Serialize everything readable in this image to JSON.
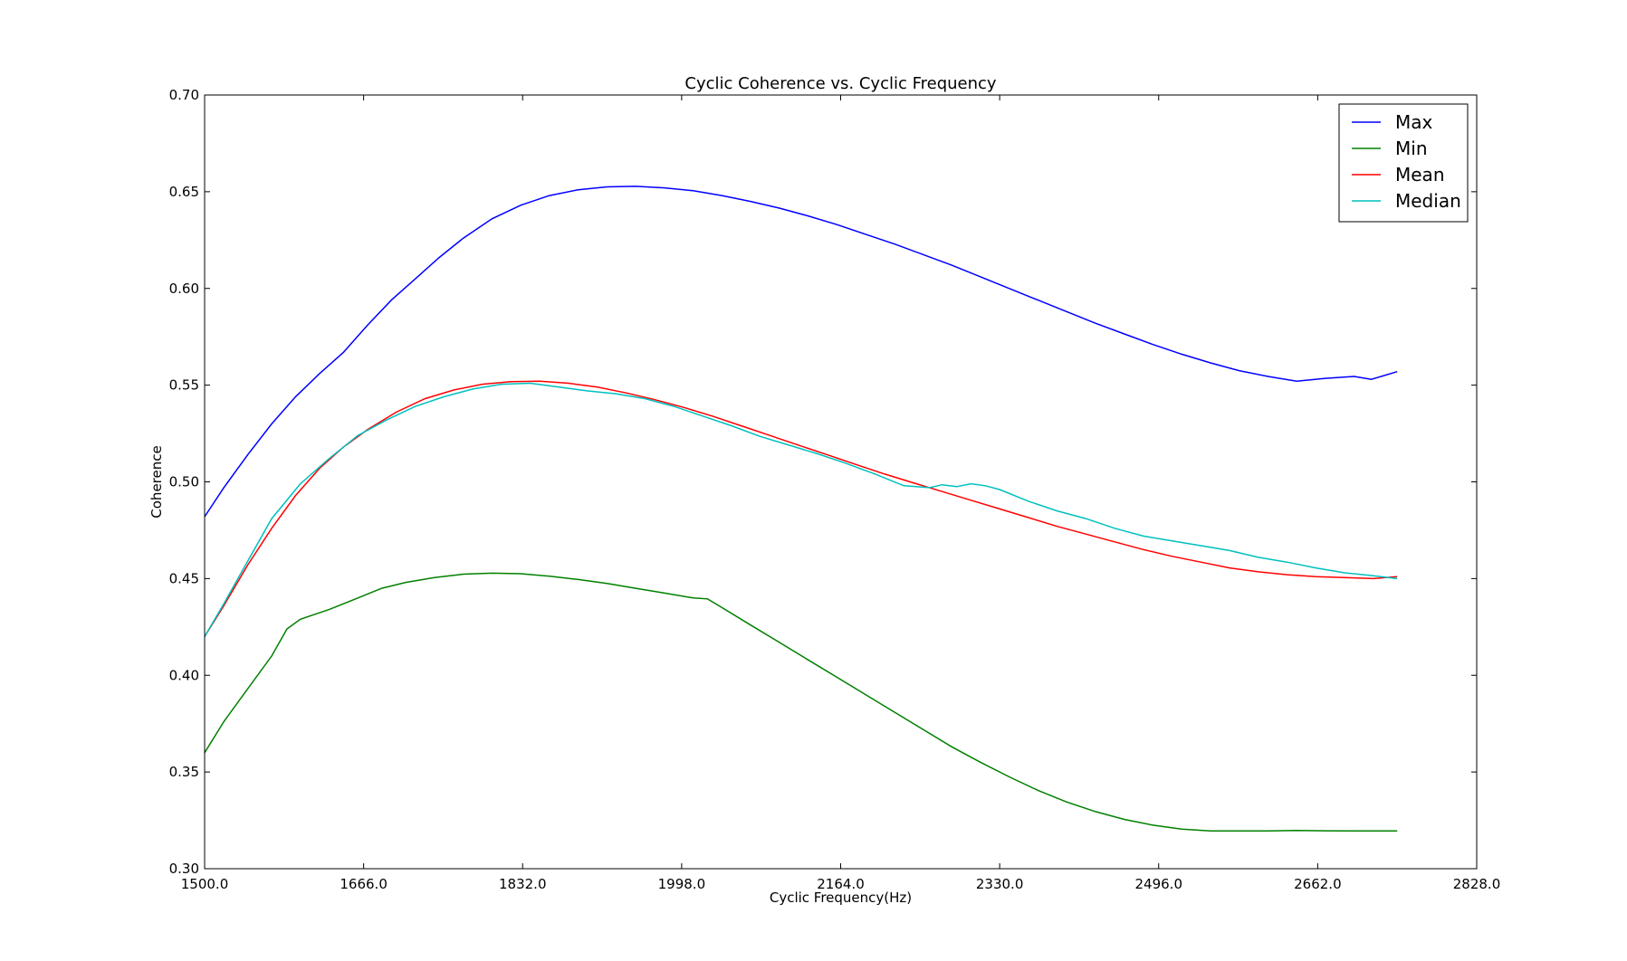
{
  "chart_data": {
    "type": "line",
    "title": "Cyclic Coherence vs. Cyclic Frequency",
    "xlabel": "Cyclic Frequency(Hz)",
    "ylabel": "Coherence",
    "xlim": [
      1500,
      2828
    ],
    "ylim": [
      0.3,
      0.7
    ],
    "xticks": [
      "1500.0",
      "1666.0",
      "1832.0",
      "1998.0",
      "2164.0",
      "2330.0",
      "2496.0",
      "2662.0",
      "2828.0"
    ],
    "yticks": [
      "0.30",
      "0.35",
      "0.40",
      "0.45",
      "0.50",
      "0.55",
      "0.60",
      "0.65",
      "0.70"
    ],
    "grid": false,
    "legend_position": "top-right",
    "series": [
      {
        "name": "Max",
        "color": "#0000ff",
        "x": [
          1500,
          1520,
          1545,
          1570,
          1595,
          1620,
          1645,
          1670,
          1695,
          1720,
          1745,
          1770,
          1800,
          1830,
          1860,
          1890,
          1920,
          1950,
          1980,
          2010,
          2040,
          2070,
          2100,
          2130,
          2160,
          2190,
          2220,
          2250,
          2280,
          2310,
          2340,
          2370,
          2400,
          2430,
          2460,
          2490,
          2520,
          2550,
          2580,
          2610,
          2640,
          2670,
          2700,
          2718,
          2745
        ],
        "y": [
          0.482,
          0.497,
          0.514,
          0.53,
          0.544,
          0.556,
          0.567,
          0.581,
          0.594,
          0.605,
          0.616,
          0.626,
          0.636,
          0.643,
          0.648,
          0.651,
          0.6525,
          0.6528,
          0.652,
          0.6505,
          0.648,
          0.645,
          0.6415,
          0.6375,
          0.633,
          0.628,
          0.623,
          0.6175,
          0.612,
          0.606,
          0.6,
          0.594,
          0.588,
          0.582,
          0.5765,
          0.571,
          0.566,
          0.5615,
          0.5575,
          0.5545,
          0.552,
          0.5535,
          0.5545,
          0.553,
          0.557
        ]
      },
      {
        "name": "Min",
        "color": "#008000",
        "x": [
          1500,
          1520,
          1545,
          1570,
          1586,
          1600,
          1630,
          1660,
          1685,
          1710,
          1740,
          1770,
          1800,
          1830,
          1860,
          1890,
          1920,
          1950,
          1980,
          2010,
          2025,
          2040,
          2070,
          2100,
          2130,
          2160,
          2190,
          2220,
          2250,
          2280,
          2310,
          2340,
          2370,
          2400,
          2430,
          2460,
          2490,
          2520,
          2550,
          2580,
          2610,
          2640,
          2670,
          2700,
          2745
        ],
        "y": [
          0.36,
          0.376,
          0.393,
          0.41,
          0.424,
          0.429,
          0.434,
          0.44,
          0.445,
          0.448,
          0.4505,
          0.4523,
          0.4528,
          0.4525,
          0.4512,
          0.4495,
          0.4475,
          0.445,
          0.4425,
          0.44,
          0.4395,
          0.435,
          0.426,
          0.417,
          0.408,
          0.399,
          0.39,
          0.381,
          0.372,
          0.363,
          0.355,
          0.3475,
          0.3405,
          0.3345,
          0.3295,
          0.3255,
          0.3225,
          0.3205,
          0.3195,
          0.3195,
          0.3195,
          0.3198,
          0.3196,
          0.3195,
          0.3195
        ]
      },
      {
        "name": "Mean",
        "color": "#ff0000",
        "x": [
          1500,
          1520,
          1545,
          1570,
          1595,
          1620,
          1645,
          1670,
          1700,
          1730,
          1760,
          1790,
          1820,
          1850,
          1880,
          1910,
          1940,
          1970,
          2000,
          2030,
          2060,
          2090,
          2120,
          2150,
          2180,
          2210,
          2240,
          2270,
          2300,
          2330,
          2360,
          2390,
          2420,
          2450,
          2480,
          2510,
          2540,
          2570,
          2600,
          2630,
          2660,
          2690,
          2720,
          2745
        ],
        "y": [
          0.42,
          0.436,
          0.457,
          0.476,
          0.493,
          0.507,
          0.518,
          0.527,
          0.536,
          0.543,
          0.5475,
          0.5505,
          0.5518,
          0.552,
          0.551,
          0.549,
          0.546,
          0.5425,
          0.5385,
          0.534,
          0.529,
          0.524,
          0.519,
          0.514,
          0.509,
          0.504,
          0.4995,
          0.495,
          0.4905,
          0.486,
          0.4815,
          0.477,
          0.473,
          0.469,
          0.465,
          0.4615,
          0.4585,
          0.4555,
          0.4535,
          0.452,
          0.451,
          0.4505,
          0.45,
          0.451
        ]
      },
      {
        "name": "Median",
        "color": "#00bfbf",
        "x": [
          1500,
          1520,
          1545,
          1570,
          1600,
          1630,
          1660,
          1690,
          1720,
          1750,
          1780,
          1810,
          1840,
          1870,
          1900,
          1930,
          1960,
          1990,
          2020,
          2050,
          2080,
          2110,
          2140,
          2170,
          2200,
          2230,
          2257,
          2270,
          2285,
          2300,
          2315,
          2330,
          2360,
          2390,
          2420,
          2450,
          2480,
          2510,
          2540,
          2570,
          2600,
          2630,
          2660,
          2690,
          2720,
          2745
        ],
        "y": [
          0.42,
          0.437,
          0.459,
          0.481,
          0.499,
          0.512,
          0.524,
          0.532,
          0.539,
          0.544,
          0.548,
          0.5505,
          0.551,
          0.549,
          0.547,
          0.5455,
          0.543,
          0.539,
          0.534,
          0.529,
          0.5235,
          0.519,
          0.5145,
          0.5095,
          0.504,
          0.498,
          0.497,
          0.4985,
          0.4975,
          0.499,
          0.498,
          0.496,
          0.49,
          0.485,
          0.481,
          0.476,
          0.472,
          0.4695,
          0.467,
          0.4645,
          0.461,
          0.4585,
          0.4555,
          0.453,
          0.4515,
          0.45
        ]
      }
    ]
  }
}
